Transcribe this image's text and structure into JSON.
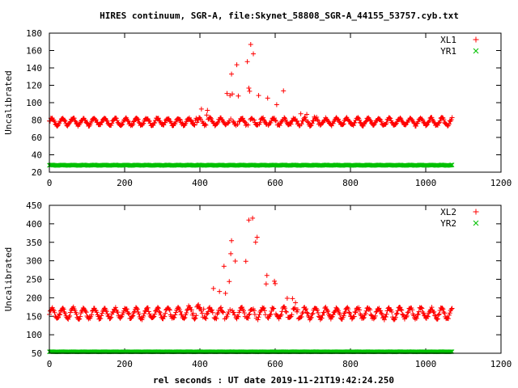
{
  "chart_data": {
    "title": "HIRES continuum, SGR-A, file:Skynet_58808_SGR-A_44155_53757.cyb.txt",
    "xlabel": "rel seconds : UT date 2019-11-21T19:42:24.250",
    "panels": [
      {
        "type": "scatter",
        "ylabel": "Uncalibrated",
        "xlim": [
          0,
          1200
        ],
        "ylim": [
          20,
          180
        ],
        "xticks": [
          0,
          200,
          400,
          600,
          800,
          1000,
          1200
        ],
        "yticks": [
          20,
          40,
          60,
          80,
          100,
          120,
          140,
          160,
          180
        ],
        "legend_position": "top-right",
        "series": [
          {
            "name": "XL1",
            "marker": "+",
            "color": "#ff0000",
            "x_range": [
              0,
              1070
            ],
            "baseline": 78,
            "ripple_amplitude": 4,
            "ripple_period": 28,
            "peak_x": 535,
            "peak_y": 167,
            "peak_width": 95
          },
          {
            "name": "YR1",
            "marker": "x",
            "color": "#00c000",
            "x_range": [
              0,
              1070
            ],
            "baseline": 28,
            "ripple_amplitude": 0.3,
            "ripple_period": 28,
            "peak_x": 535,
            "peak_y": 29,
            "peak_width": 60
          }
        ]
      },
      {
        "type": "scatter",
        "ylabel": "Uncalibrated",
        "xlim": [
          0,
          1200
        ],
        "ylim": [
          50,
          450
        ],
        "xticks": [
          0,
          200,
          400,
          600,
          800,
          1000,
          1200
        ],
        "yticks": [
          50,
          100,
          150,
          200,
          250,
          300,
          350,
          400,
          450
        ],
        "legend_position": "top-right",
        "series": [
          {
            "name": "XL2",
            "marker": "+",
            "color": "#ff0000",
            "x_range": [
              0,
              1070
            ],
            "baseline": 158,
            "ripple_amplitude": 14,
            "ripple_period": 28,
            "peak_x": 530,
            "peak_y": 410,
            "peak_width": 85
          },
          {
            "name": "YR2",
            "marker": "x",
            "color": "#00c000",
            "x_range": [
              0,
              1070
            ],
            "baseline": 54,
            "ripple_amplitude": 0.3,
            "ripple_period": 28,
            "peak_x": 530,
            "peak_y": 55,
            "peak_width": 60
          }
        ]
      }
    ]
  }
}
